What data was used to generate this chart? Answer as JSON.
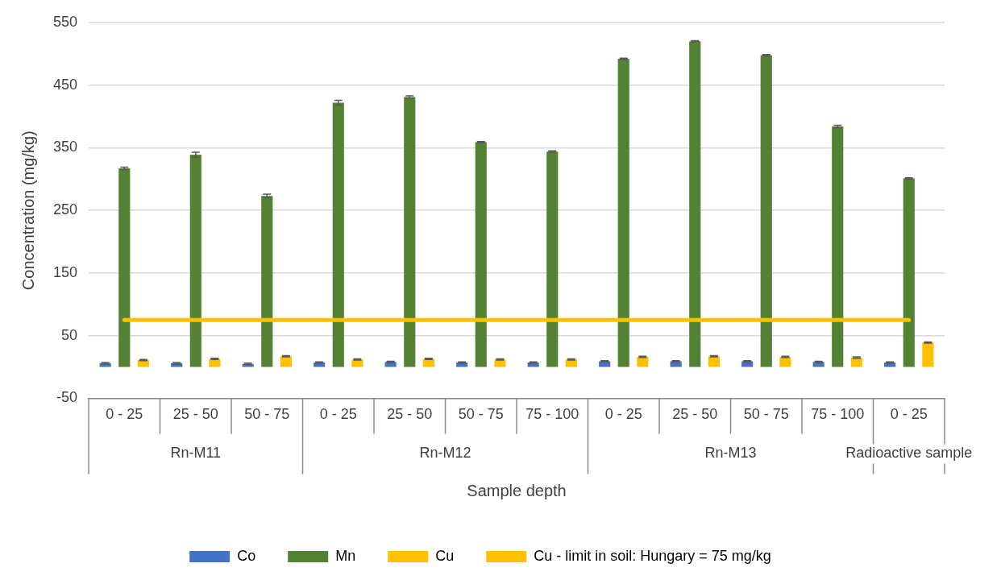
{
  "chart_data": {
    "type": "bar",
    "xlabel": "Sample depth",
    "ylabel": "Concentration (mg/kg)",
    "categories": [
      "0 - 25",
      "25 - 50",
      "50 - 75",
      "0 - 25",
      "25 - 50",
      "50 - 75",
      "75 - 100",
      "0 - 25",
      "25 - 50",
      "50 - 75",
      "75 - 100",
      "0 - 25"
    ],
    "series": [
      {
        "name": "Co",
        "color": "#4472c4",
        "values": [
          6,
          6,
          5,
          7,
          8,
          7,
          7,
          9,
          9,
          9,
          8,
          7
        ],
        "errors": [
          1,
          1,
          1,
          1,
          1,
          1,
          1,
          1,
          1,
          1,
          1,
          1
        ]
      },
      {
        "name": "Mn",
        "color": "#548235",
        "values": [
          317,
          339,
          273,
          422,
          431,
          359,
          344,
          492,
          520,
          498,
          384,
          301
        ],
        "errors": [
          2,
          4,
          3,
          4,
          2,
          1,
          1,
          1,
          1,
          1,
          2,
          1
        ]
      },
      {
        "name": "Cu",
        "color": "#ffc000",
        "values": [
          11,
          13,
          17,
          12,
          13,
          12,
          12,
          16,
          17,
          16,
          15,
          39
        ],
        "errors": [
          1,
          1,
          1,
          1,
          1,
          1,
          1,
          1,
          1,
          1,
          1,
          1
        ]
      }
    ],
    "ref_lines": [
      {
        "axis": "y",
        "value": 75,
        "label": "Cu - limit in soil: Hungary = 75 mg/kg",
        "color": "#ffc000"
      }
    ],
    "annotations": [
      "Rn-M11",
      "Rn-M12",
      "Rn-M13",
      "Radioactive sample"
    ],
    "ylim": [
      -50,
      550
    ],
    "yticks": [
      -50,
      50,
      150,
      250,
      350,
      450,
      550
    ],
    "grid": "y",
    "legend": "bottom"
  }
}
